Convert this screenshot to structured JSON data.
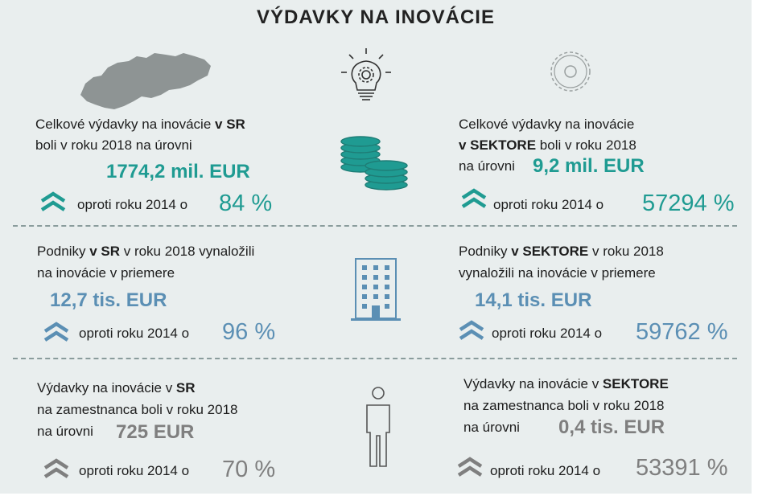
{
  "title": "VÝDAVKY NA INOVÁCIE",
  "colors": {
    "teal": "#1f9b92",
    "blue": "#5b8fb4",
    "gray": "#7f7f7f",
    "background": "#e9eeee"
  },
  "icons": [
    "slovakia-map-icon",
    "lightbulb-gear-icon",
    "gear-outline-icon",
    "coins-icon",
    "building-icon",
    "person-icon",
    "double-chevron-up-icon"
  ],
  "section1": {
    "left": {
      "line1_pre": "Celkové výdavky na inovácie ",
      "line1_bold": "v SR",
      "line2": "boli v roku 2018 na úrovni",
      "value": "1774,2 mil. EUR",
      "compare_text": "oproti roku 2014 o",
      "percent": "84 %"
    },
    "right": {
      "line1": "Celkové výdavky na inovácie",
      "line2_bold": "v  SEKTORE",
      "line2_rest": " boli v roku 2018",
      "line3": "na úrovni",
      "value": "9,2 mil. EUR",
      "compare_text": "oproti roku 2014 o",
      "percent": "57294 %"
    }
  },
  "section2": {
    "left": {
      "line1_pre": "Podniky ",
      "line1_bold": "v SR",
      "line1_rest": " v roku 2018 vynaložili",
      "line2": "na inovácie v priemere",
      "value": "12,7 tis. EUR",
      "compare_text": "oproti roku 2014 o",
      "percent": "96 %"
    },
    "right": {
      "line1_pre": "Podniky ",
      "line1_bold": "v SEKTORE",
      "line1_rest": " v roku 2018",
      "line2": "vynaložili  na inovácie v priemere",
      "value": "14,1 tis. EUR",
      "compare_text": "oproti roku 2014 o",
      "percent": "59762 %"
    }
  },
  "section3": {
    "left": {
      "line1_pre": "Výdavky na inovácie v ",
      "line1_bold": "SR",
      "line2": "na zamestnanca boli v roku 2018",
      "line3": "na úrovni",
      "value": "725 EUR",
      "compare_text": "oproti roku 2014 o",
      "percent": "70 %"
    },
    "right": {
      "line1_pre": "Výdavky na inovácie v ",
      "line1_bold": "SEKTORE",
      "line2": "na zamestnanca boli v roku 2018",
      "line3": "na úrovni",
      "value": "0,4 tis. EUR",
      "compare_text": "oproti roku 2014 o",
      "percent": "53391 %"
    }
  }
}
